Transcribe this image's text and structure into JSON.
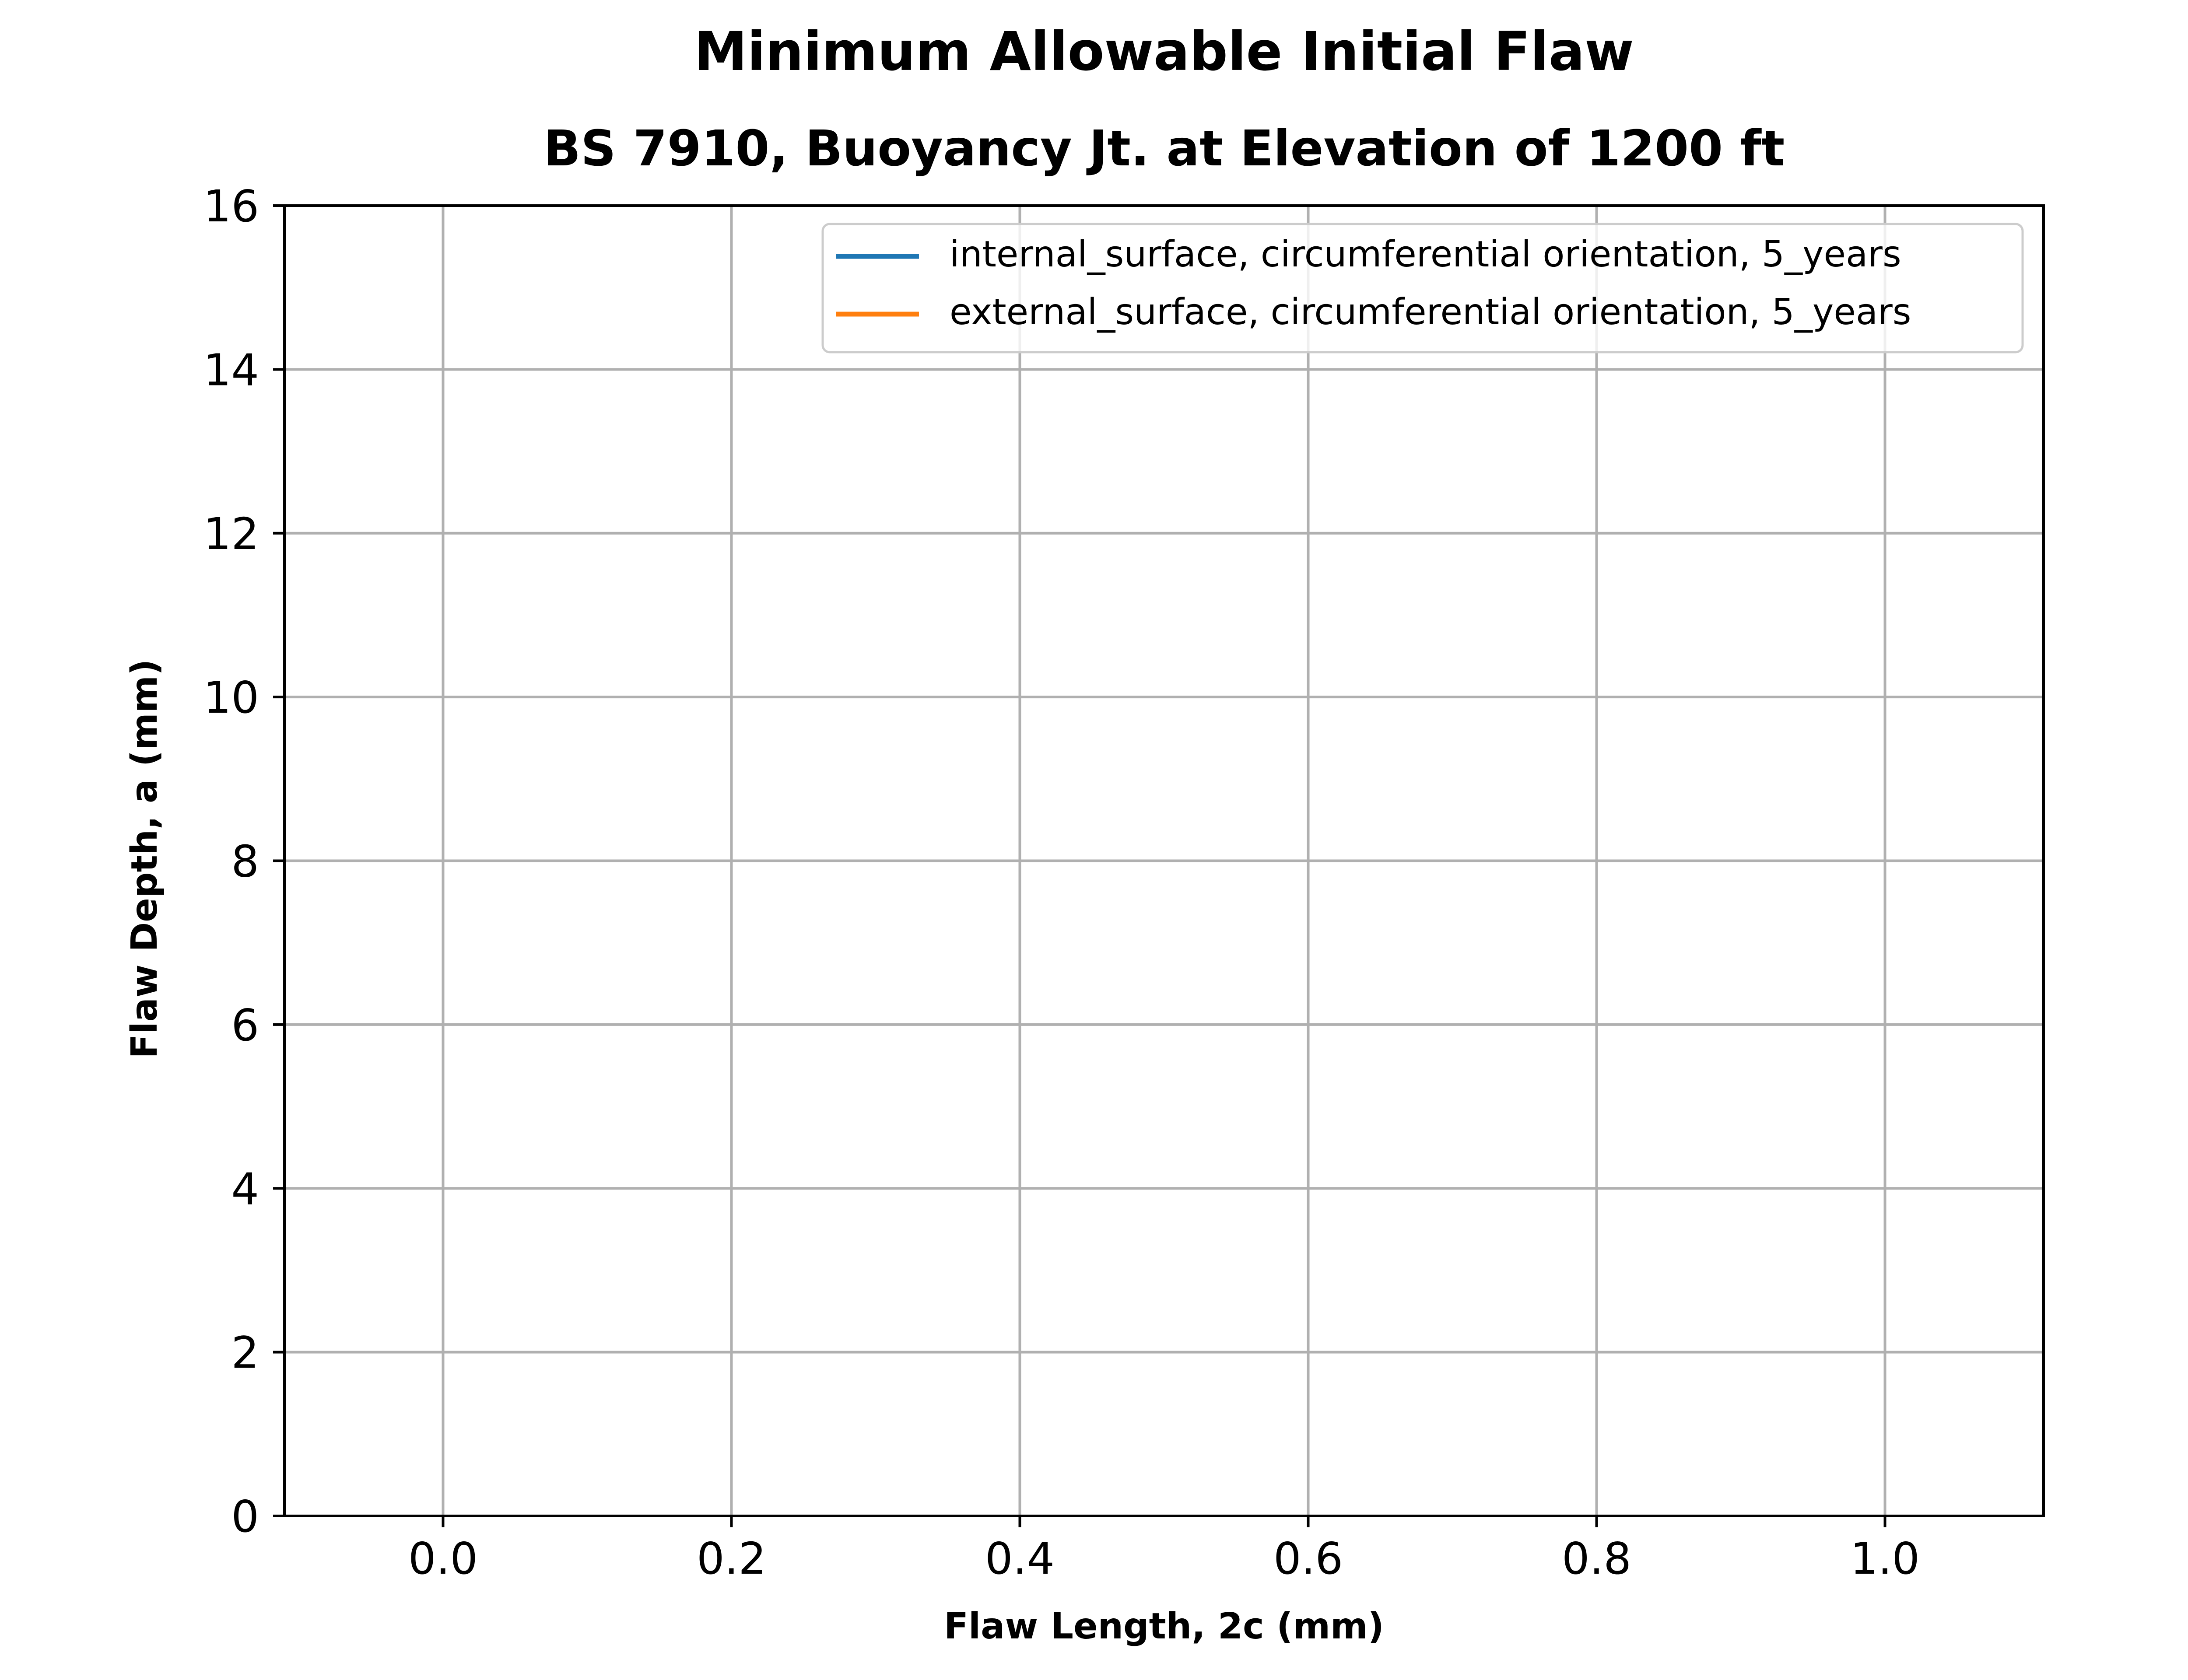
{
  "chart_data": {
    "type": "line",
    "title": "Minimum Allowable Initial Flaw",
    "subtitle": "BS 7910, Buoyancy Jt. at Elevation of 1200 ft",
    "xlabel": "Flaw Length, 2c (mm)",
    "ylabel": "Flaw Depth, a (mm)",
    "xlim": [
      -0.11,
      1.11
    ],
    "ylim": [
      0,
      16
    ],
    "x_ticks": [
      0.0,
      0.2,
      0.4,
      0.6,
      0.8,
      1.0
    ],
    "x_tick_labels": [
      "0.0",
      "0.2",
      "0.4",
      "0.6",
      "0.8",
      "1.0"
    ],
    "y_ticks": [
      0,
      2,
      4,
      6,
      8,
      10,
      12,
      14,
      16
    ],
    "y_tick_labels": [
      "0",
      "2",
      "4",
      "6",
      "8",
      "10",
      "12",
      "14",
      "16"
    ],
    "grid": true,
    "legend_position": "top-right",
    "series": [
      {
        "name": "internal_surface, circumferential orientation, 5_years",
        "color": "#1f77b4",
        "x": [],
        "y": []
      },
      {
        "name": "external_surface, circumferential orientation, 5_years",
        "color": "#ff7f0e",
        "x": [],
        "y": []
      }
    ]
  }
}
